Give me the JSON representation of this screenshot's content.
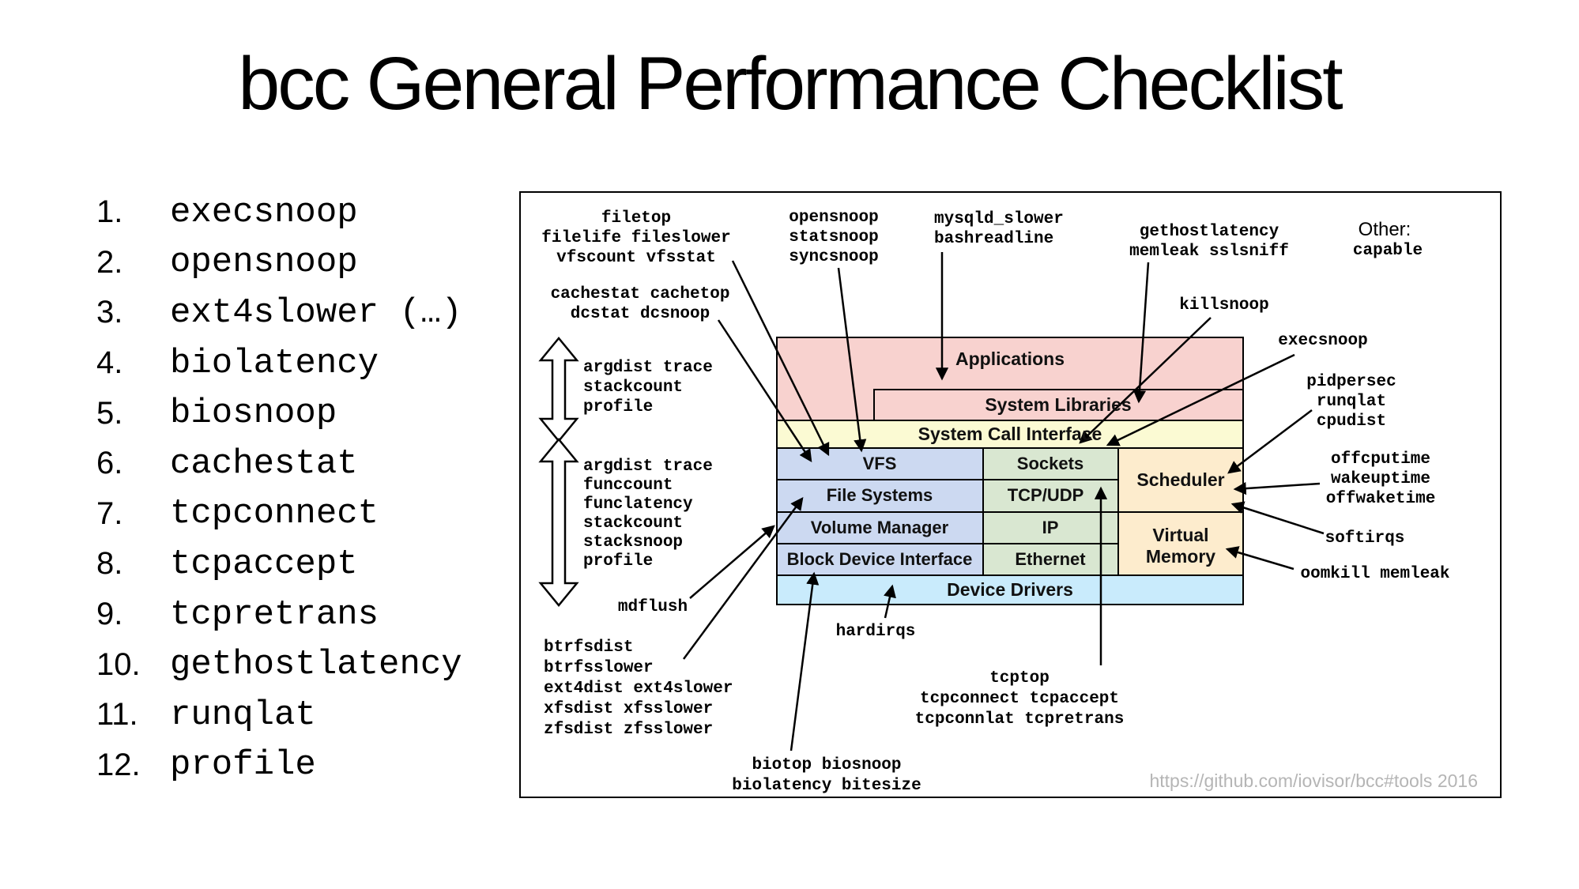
{
  "title": "bcc General Performance Checklist",
  "checklist": {
    "items": [
      {
        "num": "1.",
        "label": "execsnoop"
      },
      {
        "num": "2.",
        "label": "opensnoop"
      },
      {
        "num": "3.",
        "label": "ext4slower (…)"
      },
      {
        "num": "4.",
        "label": "biolatency"
      },
      {
        "num": "5.",
        "label": "biosnoop"
      },
      {
        "num": "6.",
        "label": "cachestat"
      },
      {
        "num": "7.",
        "label": "tcpconnect"
      },
      {
        "num": "8.",
        "label": "tcpaccept"
      },
      {
        "num": "9.",
        "label": "tcpretrans"
      },
      {
        "num": "10.",
        "label": "gethostlatency"
      },
      {
        "num": "11.",
        "label": "runqlat"
      },
      {
        "num": "12.",
        "label": "profile"
      }
    ]
  },
  "diagram": {
    "stack": {
      "applications": "Applications",
      "system_libraries": "System Libraries",
      "system_call_interface": "System Call Interface",
      "vfs": "VFS",
      "file_systems": "File Systems",
      "volume_manager": "Volume Manager",
      "block_device_interface": "Block Device Interface",
      "sockets": "Sockets",
      "tcp_udp": "TCP/UDP",
      "ip": "IP",
      "ethernet": "Ethernet",
      "scheduler": "Scheduler",
      "virtual_memory": "Virtual\nMemory",
      "device_drivers": "Device Drivers"
    },
    "annotations": {
      "filetop": "filetop\nfilelife fileslower\nvfscount vfsstat",
      "cachestat": "cachestat cachetop\ndcstat dcsnoop",
      "opensnoop": "opensnoop\nstatsnoop\nsyncsnoop",
      "mysqld": "mysqld_slower\nbashreadline",
      "gethostlatency": "gethostlatency\nmemleak sslsniff",
      "other_heading": "Other:",
      "other_tools": "capable",
      "killsnoop": "killsnoop",
      "execsnoop": "execsnoop",
      "pidpersec": "pidpersec\nrunqlat\ncpudist",
      "offcputime": "offcputime\nwakeuptime\noffwaketime",
      "softirqs": "softirqs",
      "oomkill": "oomkill memleak",
      "argdist_user": "argdist trace\nstackcount\nprofile",
      "argdist_kernel": "argdist trace\nfunccount\nfunclatency\nstackcount\nstacksnoop\nprofile",
      "mdflush": "mdflush",
      "fs_tools": "btrfsdist\nbtrfsslower\next4dist ext4slower\nxfsdist xfsslower\nzfsdist zfsslower",
      "hardirqs": "hardirqs",
      "biotop": "biotop biosnoop\nbiolatency bitesize",
      "tcptop": "tcptop\ntcpconnect tcpaccept\ntcpconnlat tcpretrans"
    },
    "footer_url": "https://github.com/iovisor/bcc#tools 2016",
    "colors": {
      "applications": "#f8d2cf",
      "syscall": "#fbfad3",
      "fs_column": "#ccd9f1",
      "net_column": "#d9e7d1",
      "cpu_column": "#fdeccd",
      "drivers": "#c9ebfc",
      "url_gray": "#b5b5b5"
    }
  }
}
